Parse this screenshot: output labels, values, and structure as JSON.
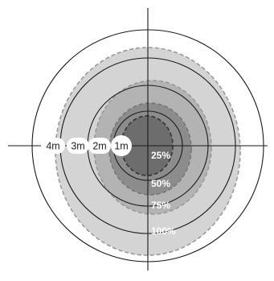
{
  "distance_rings": [
    {
      "label": "4m",
      "meters": 4
    },
    {
      "label": "3m",
      "meters": 3
    },
    {
      "label": "2m",
      "meters": 2
    },
    {
      "label": "1m",
      "meters": 1
    }
  ],
  "coverage_zones": [
    {
      "label": "100%",
      "fill": "#d4d4d4"
    },
    {
      "label": "75%",
      "fill": "#b3b3b3"
    },
    {
      "label": "50%",
      "fill": "#8c8c8c"
    },
    {
      "label": "25%",
      "fill": "#6d6d6d"
    }
  ],
  "colors": {
    "ring_stroke": "#1a1a1a",
    "dashed_stroke": "#999999",
    "inner_dashed_stroke": "#3a3a3a",
    "label_bubble": "#ffffff"
  }
}
